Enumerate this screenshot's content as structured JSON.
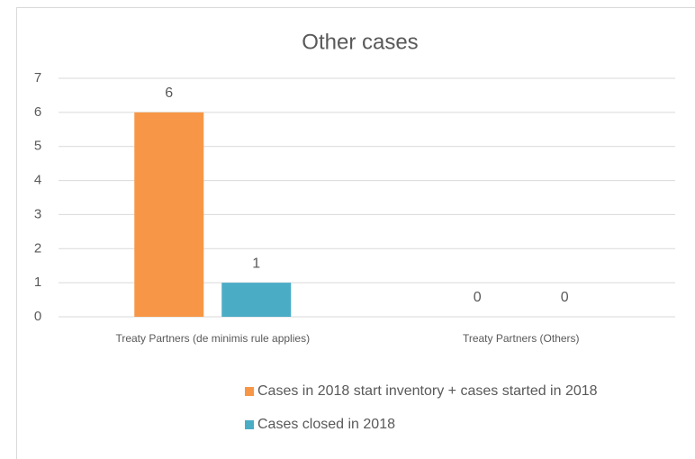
{
  "chart_data": {
    "type": "bar",
    "title": "Other cases",
    "categories": [
      "Treaty Partners (de minimis rule applies)",
      "Treaty Partners (Others)"
    ],
    "series": [
      {
        "name": "Cases in 2018 start inventory + cases started in 2018",
        "color": "#F79646",
        "values": [
          6,
          0
        ]
      },
      {
        "name": "Cases closed in 2018",
        "color": "#4BACC6",
        "values": [
          1,
          0
        ]
      }
    ],
    "ylim": [
      0,
      7
    ],
    "yticks": [
      0,
      1,
      2,
      3,
      4,
      5,
      6,
      7
    ],
    "grid": true,
    "legend": "bottom"
  }
}
